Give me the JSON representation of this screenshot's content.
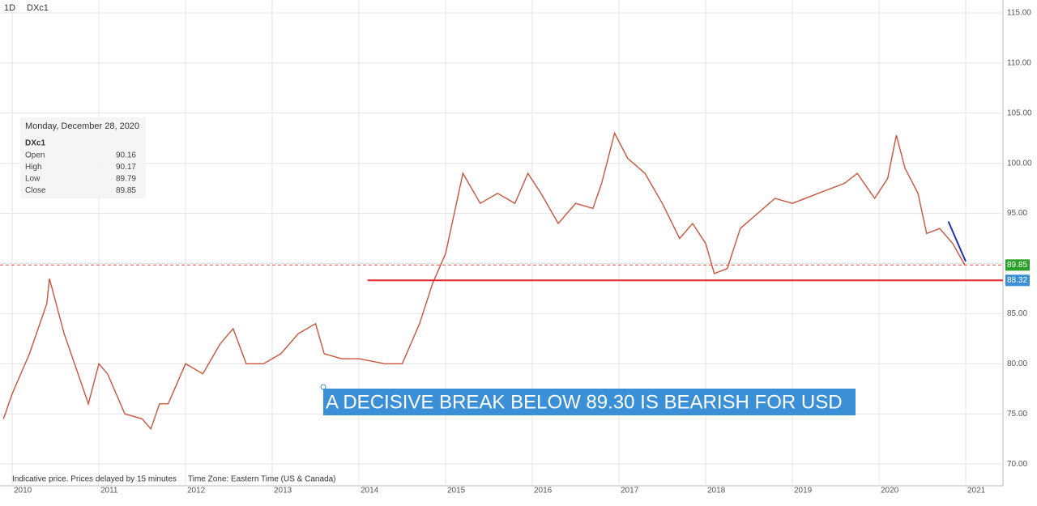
{
  "chart_data": {
    "type": "line",
    "interval": "1D",
    "symbol": "DXc1",
    "annotation": "A DECISIVE BREAK BELOW 89.30 IS BEARISH FOR USD",
    "footer": [
      "Indicative price. Prices delayed by 15 minutes",
      "Time Zone: Eastern Time (US & Canada)"
    ],
    "ohlc": {
      "date": "Monday, December 28, 2020",
      "symbol": "DXc1",
      "labels": [
        "Open",
        "High",
        "Low",
        "Close"
      ],
      "values": [
        90.16,
        90.17,
        89.79,
        89.85
      ]
    },
    "series": [
      {
        "name": "DXc1",
        "color": "#c8553d",
        "x": [
          2009.9,
          2010.0,
          2010.2,
          2010.4,
          2010.43,
          2010.6,
          2010.8,
          2010.88,
          2011.0,
          2011.1,
          2011.3,
          2011.5,
          2011.6,
          2011.7,
          2011.8,
          2012.0,
          2012.2,
          2012.4,
          2012.55,
          2012.7,
          2012.9,
          2013.1,
          2013.3,
          2013.5,
          2013.6,
          2013.8,
          2014.0,
          2014.3,
          2014.5,
          2014.7,
          2014.85,
          2015.0,
          2015.1,
          2015.2,
          2015.4,
          2015.6,
          2015.8,
          2015.95,
          2016.1,
          2016.3,
          2016.5,
          2016.7,
          2016.8,
          2016.95,
          2017.1,
          2017.3,
          2017.5,
          2017.7,
          2017.85,
          2018.0,
          2018.1,
          2018.25,
          2018.4,
          2018.6,
          2018.8,
          2019.0,
          2019.3,
          2019.6,
          2019.75,
          2019.95,
          2020.1,
          2020.2,
          2020.3,
          2020.45,
          2020.55,
          2020.7,
          2020.85,
          2020.99
        ],
        "values": [
          74.5,
          77,
          81,
          86,
          88.5,
          83,
          78,
          76,
          80,
          79,
          75,
          74.5,
          73.5,
          76,
          76,
          80,
          79,
          82,
          83.5,
          80,
          80,
          81,
          83,
          84,
          81,
          80.5,
          80.5,
          80,
          80,
          84,
          88,
          91,
          95,
          99,
          96,
          97,
          96,
          99,
          97,
          94,
          96,
          95.5,
          98,
          103,
          100.5,
          99,
          96,
          92.5,
          94,
          92,
          89,
          89.5,
          93.5,
          95,
          96.5,
          96,
          97,
          98,
          99,
          96.5,
          98.5,
          102.8,
          99.5,
          97,
          93,
          93.5,
          92,
          89.85
        ]
      }
    ],
    "trendline": {
      "color": "#1f2fb8",
      "x": [
        2020.8,
        2021.0
      ],
      "values": [
        94.2,
        90.2
      ]
    },
    "support": {
      "value": 88.32,
      "x_start": 2014.1,
      "color": "#e8262b",
      "label_color": "#3a8fd6"
    },
    "last_price": {
      "value": 89.85,
      "color": "#2aa02a"
    },
    "xlim": [
      2009.86,
      2021.43
    ],
    "xticks": [
      2010,
      2011,
      2012,
      2013,
      2014,
      2015,
      2016,
      2017,
      2018,
      2019,
      2020,
      2021
    ],
    "ylim": [
      67.83,
      116.29
    ],
    "yticks": [
      {
        "value": 70,
        "label": "70.00"
      },
      {
        "value": 75,
        "label": "75.00"
      },
      {
        "value": 80,
        "label": "80.00"
      },
      {
        "value": 85,
        "label": "85.00"
      },
      {
        "value": 90,
        "label": "90.00"
      },
      {
        "value": 95,
        "label": "95.00"
      },
      {
        "value": 100,
        "label": "100.00"
      },
      {
        "value": 105,
        "label": "105.00"
      },
      {
        "value": 110,
        "label": "110.00"
      },
      {
        "value": 115,
        "label": "115.00"
      }
    ],
    "grid": true
  }
}
